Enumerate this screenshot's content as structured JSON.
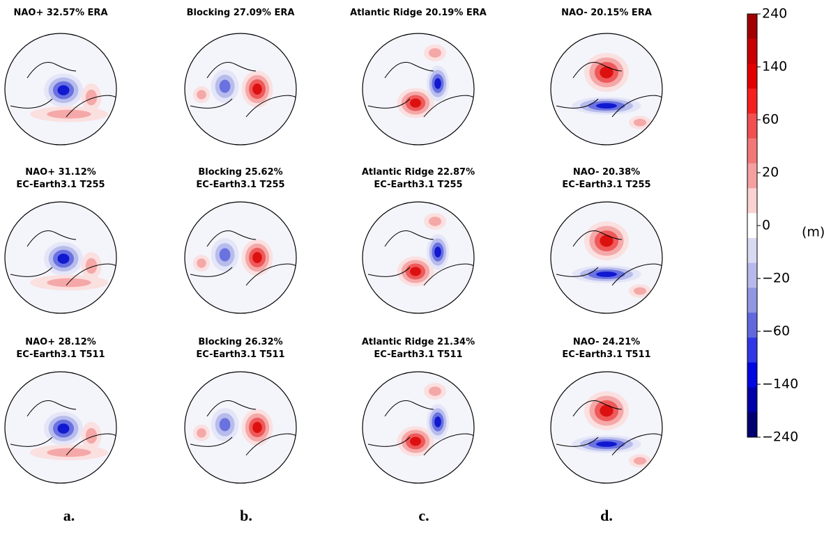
{
  "panels": [
    {
      "lines": [
        "NAO+ 32.57% ERA"
      ]
    },
    {
      "lines": [
        "Blocking 27.09% ERA"
      ]
    },
    {
      "lines": [
        "Atlantic Ridge 20.19% ERA"
      ]
    },
    {
      "lines": [
        "NAO- 20.15% ERA"
      ]
    },
    {
      "lines": [
        "NAO+ 31.12%",
        "EC-Earth3.1 T255"
      ]
    },
    {
      "lines": [
        "Blocking 25.62%",
        "EC-Earth3.1 T255"
      ]
    },
    {
      "lines": [
        "Atlantic Ridge 22.87%",
        "EC-Earth3.1 T255"
      ]
    },
    {
      "lines": [
        "NAO- 20.38%",
        "EC-Earth3.1 T255"
      ]
    },
    {
      "lines": [
        "NAO+ 28.12%",
        "EC-Earth3.1 T511"
      ]
    },
    {
      "lines": [
        "Blocking 26.32%",
        "EC-Earth3.1 T511"
      ]
    },
    {
      "lines": [
        "Atlantic Ridge 21.34%",
        "EC-Earth3.1 T511"
      ]
    },
    {
      "lines": [
        "NAO- 24.21%",
        "EC-Earth3.1 T511"
      ]
    }
  ],
  "column_labels": [
    "a.",
    "b.",
    "c.",
    "d."
  ],
  "colorbar": {
    "unit": "(m)",
    "ticks": [
      240,
      140,
      60,
      20,
      0,
      {
        "value": -20,
        "label": "−20"
      },
      {
        "value": -60,
        "label": "−60"
      },
      {
        "value": -140,
        "label": "−140"
      },
      {
        "value": -240,
        "label": "−240"
      }
    ],
    "colors": [
      "#a00000",
      "#c80000",
      "#e00000",
      "#f42020",
      "#f05050",
      "#f27878",
      "#f5a0a0",
      "#fad2d2",
      "#ffffff",
      "#d8daf2",
      "#b6baea",
      "#9096e0",
      "#6068dc",
      "#3038e6",
      "#0008e0",
      "#0000a8",
      "#000070"
    ]
  }
}
